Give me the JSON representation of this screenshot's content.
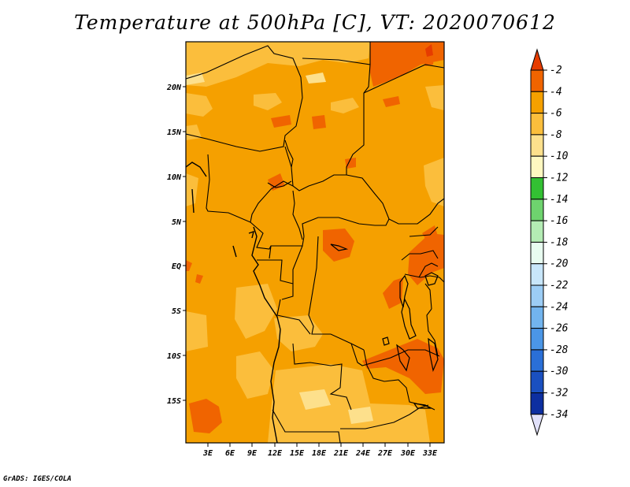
{
  "title": "Temperature at 500hPa [C], VT: 2020070612",
  "credit": "GrADS: IGES/COLA",
  "map": {
    "lat_labels": [
      "20N",
      "15N",
      "10N",
      "5N",
      "EQ",
      "5S",
      "10S",
      "15S"
    ],
    "lon_labels": [
      "3E",
      "6E",
      "9E",
      "12E",
      "15E",
      "18E",
      "21E",
      "24E",
      "27E",
      "30E",
      "33E"
    ]
  },
  "colorbar": {
    "labels": [
      "-2",
      "-4",
      "-6",
      "-8",
      "-10",
      "-12",
      "-14",
      "-16",
      "-18",
      "-20",
      "-22",
      "-24",
      "-26",
      "-28",
      "-30",
      "-32",
      "-34"
    ],
    "colors": [
      "#e63c00",
      "#f06400",
      "#f5a000",
      "#fbbe3c",
      "#fde08c",
      "#fff8c0",
      "#33c033",
      "#6ed36e",
      "#b4ecb4",
      "#e8fcf0",
      "#c8e6fa",
      "#9ccdf5",
      "#72b4ee",
      "#4b96e6",
      "#2a6fd7",
      "#1a50c0",
      "#0d2fa0",
      "#080f6e",
      "#e1e1fa"
    ]
  }
}
